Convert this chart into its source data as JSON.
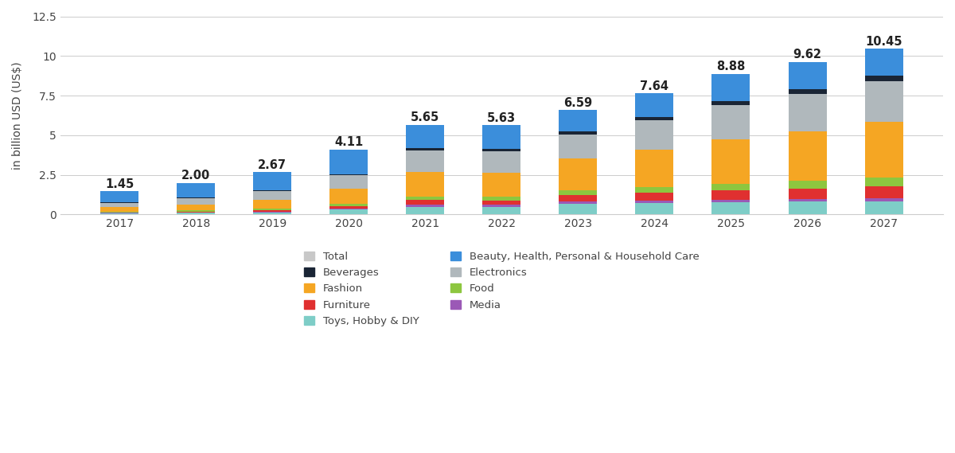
{
  "years": [
    "2017",
    "2018",
    "2019",
    "2020",
    "2021",
    "2022",
    "2023",
    "2024",
    "2025",
    "2026",
    "2027"
  ],
  "totals": [
    1.45,
    2.0,
    2.67,
    4.11,
    5.65,
    5.63,
    6.59,
    7.64,
    8.88,
    9.62,
    10.45
  ],
  "segments": {
    "Toys, Hobby & DIY": [
      0.08,
      0.1,
      0.14,
      0.3,
      0.48,
      0.48,
      0.65,
      0.72,
      0.75,
      0.8,
      0.82
    ],
    "Media": [
      0.02,
      0.03,
      0.04,
      0.07,
      0.12,
      0.12,
      0.15,
      0.16,
      0.18,
      0.19,
      0.21
    ],
    "Furniture": [
      0.04,
      0.06,
      0.09,
      0.17,
      0.3,
      0.28,
      0.42,
      0.5,
      0.58,
      0.65,
      0.72
    ],
    "Food": [
      0.04,
      0.06,
      0.08,
      0.13,
      0.22,
      0.22,
      0.3,
      0.35,
      0.42,
      0.5,
      0.6
    ],
    "Fashion": [
      0.28,
      0.38,
      0.55,
      0.95,
      1.55,
      1.55,
      2.0,
      2.35,
      2.8,
      3.1,
      3.5
    ],
    "Electronics": [
      0.28,
      0.38,
      0.55,
      0.85,
      1.35,
      1.35,
      1.52,
      1.85,
      2.18,
      2.35,
      2.55
    ],
    "Beverages": [
      0.02,
      0.05,
      0.06,
      0.08,
      0.15,
      0.15,
      0.18,
      0.22,
      0.26,
      0.3,
      0.34
    ],
    "Beauty, Health, Personal & Household Care": [
      0.38,
      0.54,
      0.76,
      0.56,
      0.78,
      0.48,
      0.87,
      1.0,
      1.18,
      0.73,
      1.71
    ]
  },
  "colors": {
    "Toys, Hobby & DIY": "#7ecdc7",
    "Media": "#9b59b6",
    "Furniture": "#e03030",
    "Food": "#8dc63f",
    "Fashion": "#f5a623",
    "Electronics": "#b0b8bc",
    "Beverages": "#1a2535",
    "Beauty, Health, Personal & Household Care": "#3b8edb"
  },
  "total_color": "#c8c8c8",
  "ylabel": "in billion USD (US$)",
  "ylim": [
    0,
    12.5
  ],
  "yticks": [
    0,
    2.5,
    5,
    7.5,
    10,
    12.5
  ],
  "background_color": "#ffffff",
  "grid_color": "#cccccc",
  "bar_width": 0.5,
  "annotation_fontsize": 10.5,
  "legend_fontsize": 9.5,
  "ylabel_fontsize": 10
}
